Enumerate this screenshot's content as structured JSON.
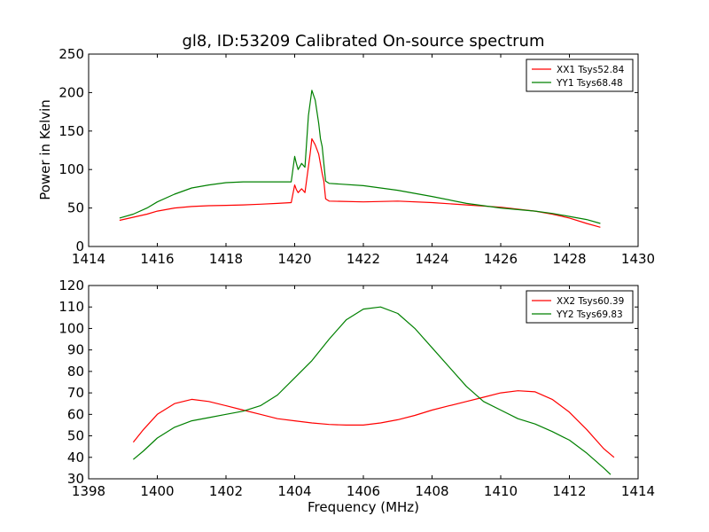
{
  "chart_data": [
    {
      "type": "line",
      "title": "gl8, ID:53209 Calibrated On-source spectrum",
      "xlabel": "",
      "ylabel": "Power in Kelvin",
      "xlim": [
        1414,
        1430
      ],
      "ylim": [
        0,
        250
      ],
      "xticks": [
        1414,
        1416,
        1418,
        1420,
        1422,
        1424,
        1426,
        1428,
        1430
      ],
      "yticks": [
        0,
        50,
        100,
        150,
        200,
        250
      ],
      "grid": false,
      "legend_position": "top-right",
      "series": [
        {
          "name": "XX1 Tsys52.84",
          "color": "#ff0000",
          "points": [
            [
              1414.9,
              34
            ],
            [
              1415.3,
              38
            ],
            [
              1415.7,
              42
            ],
            [
              1416.0,
              46
            ],
            [
              1416.5,
              50
            ],
            [
              1417.0,
              52
            ],
            [
              1417.5,
              53
            ],
            [
              1418.0,
              53.5
            ],
            [
              1418.5,
              54
            ],
            [
              1419.0,
              55
            ],
            [
              1419.5,
              56
            ],
            [
              1419.9,
              57
            ],
            [
              1420.0,
              80
            ],
            [
              1420.05,
              74
            ],
            [
              1420.1,
              70
            ],
            [
              1420.2,
              75
            ],
            [
              1420.3,
              70
            ],
            [
              1420.45,
              120
            ],
            [
              1420.5,
              140
            ],
            [
              1420.6,
              132
            ],
            [
              1420.7,
              120
            ],
            [
              1420.8,
              95
            ],
            [
              1420.85,
              85
            ],
            [
              1420.9,
              62
            ],
            [
              1421.0,
              59
            ],
            [
              1422.0,
              58
            ],
            [
              1423.0,
              59
            ],
            [
              1424.0,
              57
            ],
            [
              1425.0,
              54
            ],
            [
              1426.0,
              51
            ],
            [
              1427.0,
              46
            ],
            [
              1427.5,
              42
            ],
            [
              1428.0,
              37
            ],
            [
              1428.5,
              30
            ],
            [
              1428.9,
              25
            ]
          ]
        },
        {
          "name": "YY1 Tsys68.48",
          "color": "#008000",
          "points": [
            [
              1414.9,
              37
            ],
            [
              1415.3,
              42
            ],
            [
              1415.7,
              50
            ],
            [
              1416.0,
              58
            ],
            [
              1416.5,
              68
            ],
            [
              1417.0,
              76
            ],
            [
              1417.5,
              80
            ],
            [
              1418.0,
              83
            ],
            [
              1418.5,
              84
            ],
            [
              1419.0,
              84
            ],
            [
              1419.5,
              84
            ],
            [
              1419.9,
              84
            ],
            [
              1420.0,
              117
            ],
            [
              1420.05,
              108
            ],
            [
              1420.1,
              100
            ],
            [
              1420.2,
              108
            ],
            [
              1420.3,
              103
            ],
            [
              1420.4,
              170
            ],
            [
              1420.5,
              203
            ],
            [
              1420.6,
              190
            ],
            [
              1420.7,
              160
            ],
            [
              1420.75,
              140
            ],
            [
              1420.8,
              130
            ],
            [
              1420.9,
              85
            ],
            [
              1421.0,
              82
            ],
            [
              1422.0,
              79
            ],
            [
              1423.0,
              73
            ],
            [
              1424.0,
              65
            ],
            [
              1425.0,
              56
            ],
            [
              1426.0,
              50
            ],
            [
              1427.0,
              46
            ],
            [
              1427.5,
              43
            ],
            [
              1428.0,
              39
            ],
            [
              1428.5,
              35
            ],
            [
              1428.9,
              30
            ]
          ]
        }
      ]
    },
    {
      "type": "line",
      "title": "",
      "xlabel": "Frequency (MHz)",
      "ylabel": "",
      "xlim": [
        1398,
        1414
      ],
      "ylim": [
        30,
        120
      ],
      "xticks": [
        1398,
        1400,
        1402,
        1404,
        1406,
        1408,
        1410,
        1412,
        1414
      ],
      "yticks": [
        30,
        40,
        50,
        60,
        70,
        80,
        90,
        100,
        110,
        120
      ],
      "grid": false,
      "legend_position": "top-right",
      "series": [
        {
          "name": "XX2 Tsys60.39",
          "color": "#ff0000",
          "points": [
            [
              1399.3,
              47
            ],
            [
              1399.6,
              53
            ],
            [
              1400.0,
              60
            ],
            [
              1400.5,
              65
            ],
            [
              1401.0,
              67
            ],
            [
              1401.5,
              66
            ],
            [
              1402.0,
              64
            ],
            [
              1402.5,
              62
            ],
            [
              1403.0,
              60
            ],
            [
              1403.5,
              58
            ],
            [
              1404.0,
              57
            ],
            [
              1404.5,
              56
            ],
            [
              1405.0,
              55.3
            ],
            [
              1405.5,
              55
            ],
            [
              1406.0,
              55
            ],
            [
              1406.5,
              56
            ],
            [
              1407.0,
              57.5
            ],
            [
              1407.5,
              59.5
            ],
            [
              1408.0,
              62
            ],
            [
              1408.5,
              64
            ],
            [
              1409.0,
              66
            ],
            [
              1409.5,
              68
            ],
            [
              1410.0,
              70
            ],
            [
              1410.5,
              71
            ],
            [
              1411.0,
              70.5
            ],
            [
              1411.5,
              67
            ],
            [
              1412.0,
              61
            ],
            [
              1412.5,
              53
            ],
            [
              1413.0,
              44
            ],
            [
              1413.3,
              40
            ]
          ]
        },
        {
          "name": "YY2 Tsys69.83",
          "color": "#008000",
          "points": [
            [
              1399.3,
              39
            ],
            [
              1399.6,
              43
            ],
            [
              1400.0,
              49
            ],
            [
              1400.5,
              54
            ],
            [
              1401.0,
              57
            ],
            [
              1401.5,
              58.5
            ],
            [
              1402.0,
              60
            ],
            [
              1402.5,
              61.5
            ],
            [
              1403.0,
              64
            ],
            [
              1403.5,
              69
            ],
            [
              1404.0,
              77
            ],
            [
              1404.5,
              85
            ],
            [
              1405.0,
              95
            ],
            [
              1405.5,
              104
            ],
            [
              1406.0,
              109
            ],
            [
              1406.5,
              110
            ],
            [
              1407.0,
              107
            ],
            [
              1407.5,
              100
            ],
            [
              1408.0,
              91
            ],
            [
              1408.5,
              82
            ],
            [
              1409.0,
              73
            ],
            [
              1409.5,
              66
            ],
            [
              1410.0,
              62
            ],
            [
              1410.5,
              58
            ],
            [
              1411.0,
              55.5
            ],
            [
              1411.5,
              52
            ],
            [
              1412.0,
              48
            ],
            [
              1412.5,
              42
            ],
            [
              1413.0,
              35
            ],
            [
              1413.2,
              32
            ]
          ]
        }
      ]
    }
  ]
}
